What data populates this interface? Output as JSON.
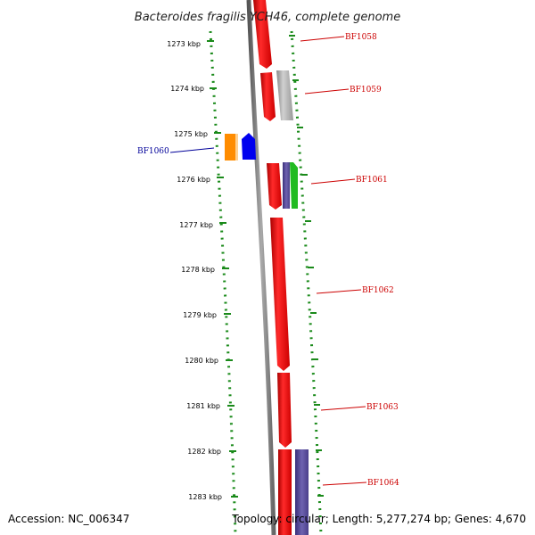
{
  "title": "Bacteroides fragilis YCH46, complete genome",
  "footer": {
    "accession": "Accession: NC_006347",
    "topology": "Topology: circular; Length: 5,277,274 bp; Genes: 4,670"
  },
  "ticks": [
    "1273 kbp",
    "1274 kbp",
    "1275 kbp",
    "1276 kbp",
    "1277 kbp",
    "1278 kbp",
    "1279 kbp",
    "1280 kbp",
    "1281 kbp",
    "1282 kbp",
    "1283 kbp"
  ],
  "colors": {
    "red": "#ee0000",
    "gray": "#b0b0b0",
    "blue": "#0000ee",
    "orange": "#ff8c00",
    "purple": "#5a4e9a",
    "green": "#22bb22",
    "tick_green": "#1a8a1a",
    "label_red": "#cc0000",
    "label_blue": "#000099"
  },
  "gene_labels": [
    {
      "name": "BF1058",
      "color": "label_red"
    },
    {
      "name": "BF1059",
      "color": "label_red"
    },
    {
      "name": "BF1060",
      "color": "label_blue"
    },
    {
      "name": "BF1061",
      "color": "label_red"
    },
    {
      "name": "BF1062",
      "color": "label_red"
    },
    {
      "name": "BF1063",
      "color": "label_red"
    },
    {
      "name": "BF1064",
      "color": "label_red"
    }
  ]
}
